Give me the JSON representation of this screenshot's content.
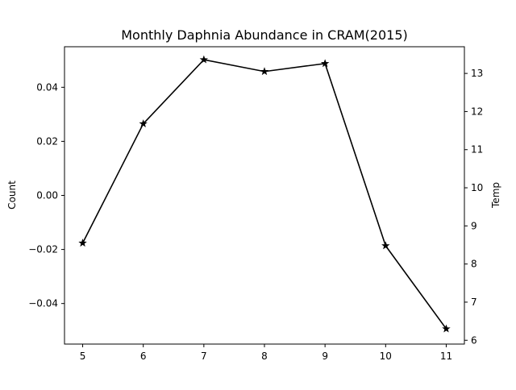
{
  "chart_data": {
    "type": "line",
    "title": "Monthly Daphnia Abundance in CRAM(2015)",
    "xlabel": "",
    "ylabel": "Count",
    "y2label": "Temp",
    "x": [
      5,
      6,
      7,
      8,
      9,
      10,
      11
    ],
    "xticks": [
      "5",
      "6",
      "7",
      "8",
      "9",
      "10",
      "11"
    ],
    "xlim": [
      4.7,
      11.3
    ],
    "ylim": [
      -0.055,
      0.055
    ],
    "yticks": [
      -0.04,
      -0.02,
      0.0,
      0.02,
      0.04
    ],
    "ytick_labels": [
      "−0.04",
      "−0.02",
      "0.00",
      "0.02",
      "0.04"
    ],
    "y2lim": [
      5.9,
      13.7
    ],
    "y2ticks": [
      6,
      7,
      8,
      9,
      10,
      11,
      12,
      13
    ],
    "y2tick_labels": [
      "6",
      "7",
      "8",
      "9",
      "10",
      "11",
      "12",
      "13"
    ],
    "grid": false,
    "series": [
      {
        "axis": "right",
        "color": "#000000",
        "marker": "star",
        "values": [
          8.55,
          11.68,
          13.36,
          13.05,
          13.26,
          8.48,
          6.3
        ]
      }
    ]
  }
}
